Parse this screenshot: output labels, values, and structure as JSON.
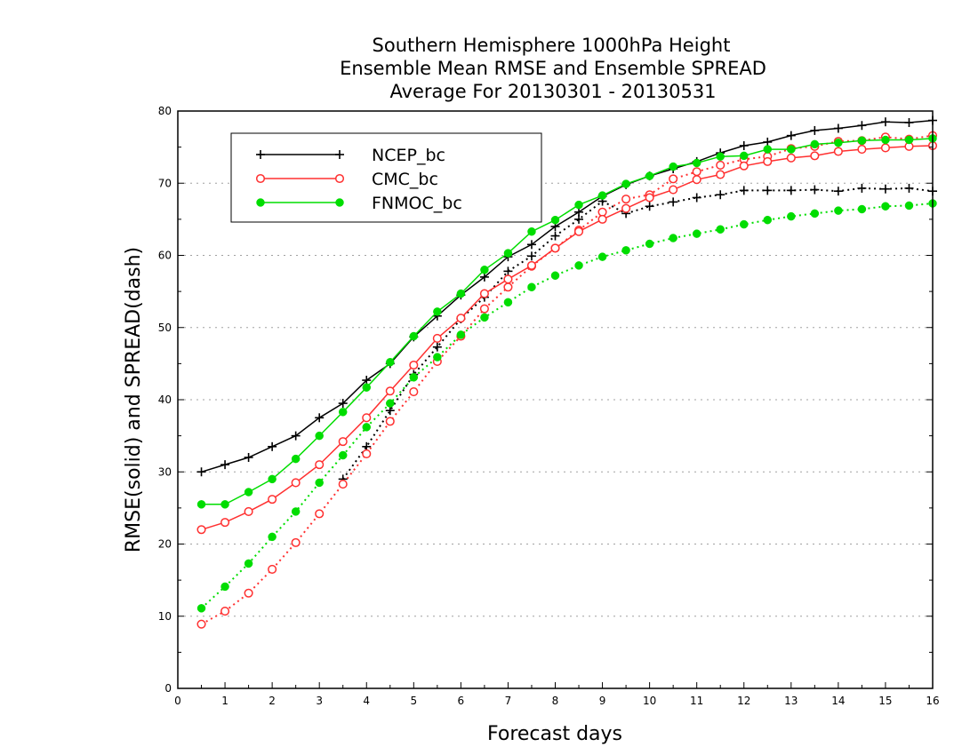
{
  "chart_data": {
    "type": "line",
    "title_lines": [
      "Southern Hemisphere 1000hPa Height",
      "Ensemble Mean RMSE and Ensemble SPREAD",
      "Average For 20130301 - 20130531"
    ],
    "xlabel": "Forecast days",
    "ylabel": "RMSE(solid) and SPREAD(dash)",
    "xlim": [
      0,
      16
    ],
    "ylim": [
      0,
      80
    ],
    "xticks": [
      0,
      1,
      2,
      3,
      4,
      5,
      6,
      7,
      8,
      9,
      10,
      11,
      12,
      13,
      14,
      15,
      16
    ],
    "yticks": [
      0,
      10,
      20,
      30,
      40,
      50,
      60,
      70,
      80
    ],
    "grid": "horizontal dotted",
    "legend_position": "top-left",
    "x": [
      0.5,
      1,
      1.5,
      2,
      2.5,
      3,
      3.5,
      4,
      4.5,
      5,
      5.5,
      6,
      6.5,
      7,
      7.5,
      8,
      8.5,
      9,
      9.5,
      10,
      10.5,
      11,
      11.5,
      12,
      12.5,
      13,
      13.5,
      14,
      14.5,
      15,
      15.5,
      16
    ],
    "series": [
      {
        "name": "NCEP_bc",
        "color": "#000000",
        "marker": "plus",
        "rmse": [
          30,
          31,
          32,
          33.5,
          35,
          37.5,
          39.5,
          42.7,
          45,
          48.7,
          51.6,
          54.5,
          57,
          59.8,
          61.5,
          64,
          66,
          68.2,
          69.8,
          71,
          72,
          73,
          74.2,
          75.2,
          75.7,
          76.6,
          77.3,
          77.6,
          78,
          78.5,
          78.4,
          78.7
        ],
        "spread": [
          null,
          null,
          null,
          null,
          null,
          null,
          29,
          33.5,
          38.5,
          43.5,
          47.3,
          51.2,
          54.2,
          57.8,
          59.9,
          62.7,
          65,
          67.5,
          65.8,
          66.8,
          67.4,
          68,
          68.4,
          69,
          69,
          69,
          69.1,
          68.9,
          69.3,
          69.2,
          69.3,
          68.9
        ]
      },
      {
        "name": "CMC_bc",
        "color": "#ff3030",
        "marker": "circle-open",
        "rmse": [
          22,
          23,
          24.5,
          26.2,
          28.5,
          31,
          34.2,
          37.5,
          41.2,
          44.8,
          48.5,
          51.3,
          54.7,
          56.7,
          58.6,
          61,
          63.3,
          65,
          66.5,
          68,
          69.1,
          70.5,
          71.2,
          72.4,
          73,
          73.5,
          73.8,
          74.4,
          74.7,
          74.9,
          75.1,
          75.2
        ],
        "spread": [
          8.9,
          10.7,
          13.2,
          16.5,
          20.2,
          24.2,
          28.3,
          32.5,
          37,
          41.1,
          45.3,
          48.8,
          52.6,
          55.6,
          58.5,
          61,
          63.5,
          66,
          67.8,
          68.4,
          70.6,
          71.6,
          72.5,
          73.3,
          73.7,
          74.8,
          75.1,
          75.8,
          75.9,
          76.4,
          76.1,
          76.6
        ]
      },
      {
        "name": "FNMOC_bc",
        "color": "#00dd00",
        "marker": "dot-filled",
        "rmse": [
          25.5,
          25.5,
          27.2,
          29,
          31.8,
          35,
          38.3,
          41.7,
          45.2,
          48.8,
          52.2,
          54.7,
          58,
          60.3,
          63.3,
          64.9,
          67,
          68.3,
          69.9,
          71,
          72.3,
          72.8,
          73.7,
          73.8,
          74.7,
          74.7,
          75.4,
          75.6,
          75.9,
          76,
          76,
          76.2
        ],
        "spread": [
          11.1,
          14.1,
          17.3,
          21,
          24.5,
          28.5,
          32.3,
          36.2,
          39.5,
          43.1,
          45.9,
          49,
          51.4,
          53.5,
          55.6,
          57.2,
          58.6,
          59.8,
          60.7,
          61.6,
          62.4,
          63,
          63.6,
          64.3,
          64.9,
          65.4,
          65.8,
          66.2,
          66.4,
          66.8,
          66.9,
          67.2
        ]
      }
    ]
  }
}
